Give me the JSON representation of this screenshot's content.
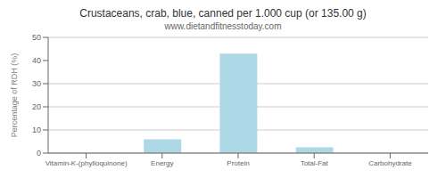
{
  "chart_data": {
    "type": "bar",
    "title": "Crustaceans, crab, blue, canned per 1.000 cup (or 135.00 g)",
    "subtitle": "www.dietandfitnesstoday.com",
    "categories": [
      "Vitamin-K-(phylloquinone)",
      "Energy",
      "Protein",
      "Total-Fat",
      "Carbohydrate"
    ],
    "values": [
      0,
      6,
      43,
      2.5,
      0
    ],
    "color": "#add8e6",
    "ylabel": "Percentage of RDH (%)",
    "ylim": [
      0,
      50
    ],
    "yticks": [
      0,
      10,
      20,
      30,
      40,
      50
    ],
    "grid": true
  }
}
